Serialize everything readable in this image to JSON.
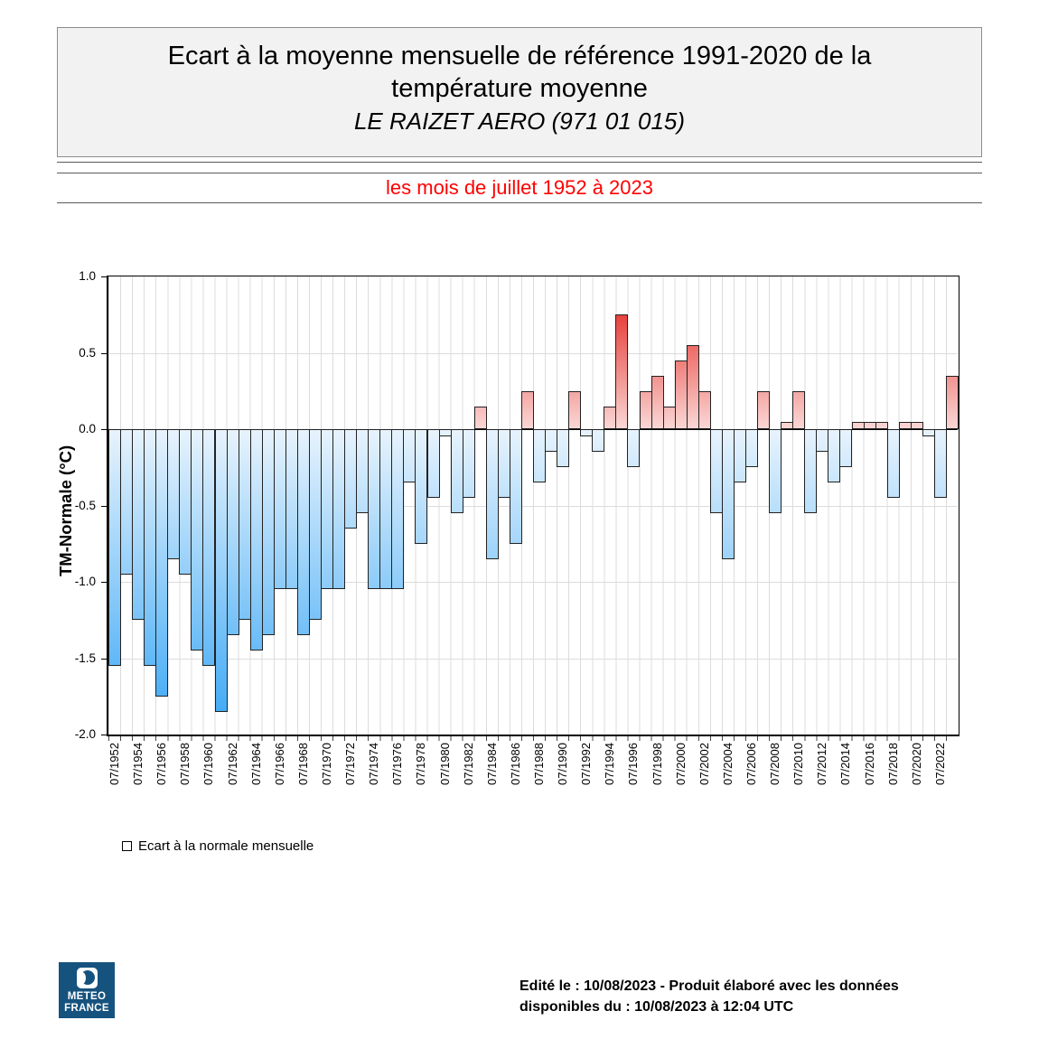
{
  "header": {
    "title": "Ecart à la moyenne mensuelle de référence 1991-2020 de la température moyenne",
    "station": "LE RAIZET AERO (971 01 015)",
    "period": "les mois de juillet 1952 à 2023"
  },
  "chart_data": {
    "type": "bar",
    "title": "Ecart à la moyenne mensuelle de référence 1991-2020 de la température moyenne",
    "subtitle": "LE RAIZET AERO (971 01 015)",
    "period": "les mois de juillet 1952 à 2023",
    "ylabel": "TM-Normale (°C)",
    "ylim": [
      -2.0,
      1.0
    ],
    "ytick_labels": [
      "1.0",
      "0.5",
      "0.0",
      "-0.5",
      "-1.0",
      "-1.5",
      "-2.0"
    ],
    "yticks": [
      1.0,
      0.5,
      0.0,
      -0.5,
      -1.0,
      -1.5,
      -2.0
    ],
    "grid": true,
    "legend_position": "bottom-left",
    "x_tick_labels": [
      "07/1952",
      "07/1954",
      "07/1956",
      "07/1958",
      "07/1960",
      "07/1962",
      "07/1964",
      "07/1966",
      "07/1968",
      "07/1970",
      "07/1972",
      "07/1974",
      "07/1976",
      "07/1978",
      "07/1980",
      "07/1982",
      "07/1984",
      "07/1986",
      "07/1988",
      "07/1990",
      "07/1992",
      "07/1994",
      "07/1996",
      "07/1998",
      "07/2000",
      "07/2002",
      "07/2004",
      "07/2006",
      "07/2008",
      "07/2010",
      "07/2012",
      "07/2014",
      "07/2016",
      "07/2018",
      "07/2020",
      "07/2022"
    ],
    "categories": [
      "07/1952",
      "07/1953",
      "07/1954",
      "07/1955",
      "07/1956",
      "07/1957",
      "07/1958",
      "07/1959",
      "07/1960",
      "07/1961",
      "07/1962",
      "07/1963",
      "07/1964",
      "07/1965",
      "07/1966",
      "07/1967",
      "07/1968",
      "07/1969",
      "07/1970",
      "07/1971",
      "07/1972",
      "07/1973",
      "07/1974",
      "07/1975",
      "07/1976",
      "07/1977",
      "07/1978",
      "07/1979",
      "07/1980",
      "07/1981",
      "07/1982",
      "07/1983",
      "07/1984",
      "07/1985",
      "07/1986",
      "07/1987",
      "07/1988",
      "07/1989",
      "07/1990",
      "07/1991",
      "07/1992",
      "07/1993",
      "07/1994",
      "07/1995",
      "07/1996",
      "07/1997",
      "07/1998",
      "07/1999",
      "07/2000",
      "07/2001",
      "07/2002",
      "07/2003",
      "07/2004",
      "07/2005",
      "07/2006",
      "07/2007",
      "07/2008",
      "07/2009",
      "07/2010",
      "07/2011",
      "07/2012",
      "07/2013",
      "07/2014",
      "07/2015",
      "07/2016",
      "07/2017",
      "07/2018",
      "07/2019",
      "07/2020",
      "07/2021",
      "07/2022",
      "07/2023"
    ],
    "values": [
      -1.55,
      -0.95,
      -1.25,
      -1.55,
      -1.75,
      -0.85,
      -0.95,
      -1.45,
      -1.55,
      -1.85,
      -1.35,
      -1.25,
      -1.45,
      -1.35,
      -1.05,
      -1.05,
      -1.35,
      -1.25,
      -1.05,
      -1.05,
      -0.65,
      -0.55,
      -1.05,
      -1.05,
      -1.05,
      -0.35,
      -0.75,
      -0.45,
      -0.05,
      -0.55,
      -0.45,
      0.15,
      -0.85,
      -0.45,
      -0.75,
      0.25,
      -0.35,
      -0.15,
      -0.25,
      0.25,
      -0.05,
      -0.15,
      0.15,
      0.75,
      -0.25,
      0.25,
      0.35,
      0.15,
      0.45,
      0.55,
      0.25,
      -0.55,
      -0.85,
      -0.35,
      -0.25,
      0.25,
      -0.55,
      0.05,
      0.25,
      -0.55,
      -0.15,
      -0.35,
      -0.25,
      0.05,
      0.05,
      0.05,
      -0.45,
      0.05,
      0.05,
      -0.05,
      -0.45,
      0.35
    ],
    "colors": {
      "negative_light": "#e7f3fd",
      "negative_deep": "#37a6f5",
      "positive_light": "#fad7d5",
      "positive_deep": "#e10e08",
      "bar_border": "#222222",
      "gridline": "#dcdcdc",
      "zero_line": "#000000"
    }
  },
  "legend": {
    "label": "Ecart à la normale mensuelle"
  },
  "footer": {
    "text_line1": "Edité le : 10/08/2023 - Produit élaboré avec les données",
    "text_line2": "disponibles du : 10/08/2023 à 12:04 UTC"
  },
  "logo": {
    "line1": "METEO",
    "line2": "FRANCE"
  }
}
